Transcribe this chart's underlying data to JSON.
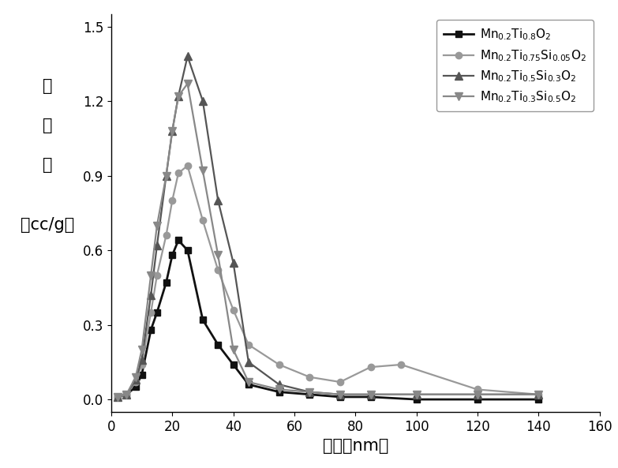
{
  "series": [
    {
      "label": "Mn$_{0.2}$Ti$_{0.8}$O$_2$",
      "color": "#111111",
      "marker": "s",
      "markersize": 6,
      "linewidth": 2.0,
      "x": [
        2,
        5,
        8,
        10,
        13,
        15,
        18,
        20,
        22,
        25,
        30,
        35,
        40,
        45,
        55,
        65,
        75,
        85,
        100,
        120,
        140
      ],
      "y": [
        0.01,
        0.02,
        0.05,
        0.1,
        0.28,
        0.35,
        0.47,
        0.58,
        0.64,
        0.6,
        0.32,
        0.22,
        0.14,
        0.06,
        0.03,
        0.02,
        0.01,
        0.01,
        0.0,
        0.0,
        0.0
      ]
    },
    {
      "label": "Mn$_{0.2}$Ti$_{0.75}$Si$_{0.05}$O$_2$",
      "color": "#999999",
      "marker": "o",
      "markersize": 6,
      "linewidth": 1.6,
      "x": [
        2,
        5,
        8,
        10,
        13,
        15,
        18,
        20,
        22,
        25,
        30,
        35,
        40,
        45,
        55,
        65,
        75,
        85,
        95,
        120,
        140
      ],
      "y": [
        0.01,
        0.02,
        0.07,
        0.14,
        0.35,
        0.5,
        0.66,
        0.8,
        0.91,
        0.94,
        0.72,
        0.52,
        0.36,
        0.22,
        0.14,
        0.09,
        0.07,
        0.13,
        0.14,
        0.04,
        0.02
      ]
    },
    {
      "label": "Mn$_{0.2}$Ti$_{0.5}$Si$_{0.3}$O$_2$",
      "color": "#555555",
      "marker": "^",
      "markersize": 7,
      "linewidth": 1.6,
      "x": [
        2,
        5,
        8,
        10,
        13,
        15,
        18,
        20,
        22,
        25,
        30,
        35,
        40,
        45,
        55,
        65,
        75,
        85,
        100,
        120,
        140
      ],
      "y": [
        0.01,
        0.02,
        0.08,
        0.16,
        0.42,
        0.62,
        0.9,
        1.08,
        1.22,
        1.38,
        1.2,
        0.8,
        0.55,
        0.15,
        0.06,
        0.03,
        0.02,
        0.02,
        0.02,
        0.02,
        0.02
      ]
    },
    {
      "label": "Mn$_{0.2}$Ti$_{0.3}$Si$_{0.5}$O$_2$",
      "color": "#888888",
      "marker": "v",
      "markersize": 7,
      "linewidth": 1.6,
      "x": [
        2,
        5,
        8,
        10,
        13,
        15,
        18,
        20,
        22,
        25,
        30,
        35,
        40,
        45,
        55,
        65,
        75,
        85,
        100,
        120,
        140
      ],
      "y": [
        0.01,
        0.02,
        0.09,
        0.2,
        0.5,
        0.7,
        0.9,
        1.08,
        1.22,
        1.27,
        0.92,
        0.58,
        0.2,
        0.07,
        0.04,
        0.03,
        0.02,
        0.02,
        0.02,
        0.02,
        0.02
      ]
    }
  ],
  "xlabel_cn": "孔径（nm）",
  "ylabel_lines": [
    "孔",
    "分",
    "布",
    "（cc/g）"
  ],
  "xlim": [
    0,
    160
  ],
  "ylim": [
    -0.05,
    1.55
  ],
  "xticks": [
    0,
    20,
    40,
    60,
    80,
    100,
    120,
    140,
    160
  ],
  "yticks": [
    0.0,
    0.3,
    0.6,
    0.9,
    1.2,
    1.5
  ],
  "background_color": "#ffffff",
  "fontsize_label": 15,
  "fontsize_tick": 12,
  "fontsize_legend": 11
}
